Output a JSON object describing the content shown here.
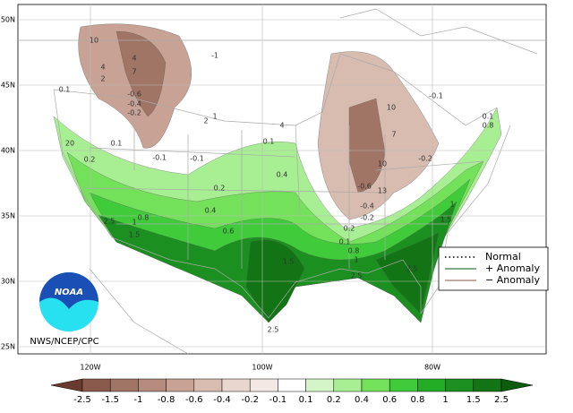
{
  "map": {
    "lat_labels": [
      "50N",
      "45N",
      "40N",
      "35N",
      "30N",
      "25N"
    ],
    "lon_labels": [
      "120W",
      "100W",
      "80W"
    ],
    "credit": "NWS/NCEP/CPC",
    "logo": "NOAA",
    "legend": [
      "Normal",
      "+ Anomaly",
      "− Anomaly"
    ],
    "contour_labels": [
      "10",
      "4",
      "7",
      "4",
      "2",
      "-0.6",
      "-0.4",
      "-0.2",
      "-1",
      "2",
      "0.1",
      "-0.1",
      "20",
      "0.2",
      "0.1",
      "-0.1",
      "0.2",
      "0.4",
      "0.8",
      "1",
      "2.5",
      "1.5",
      "0.6",
      "0.4",
      "0.1",
      "4",
      "1",
      "10",
      "-0.1",
      "7",
      "-0.2",
      "10",
      "-0.6",
      "13",
      "-0.4",
      "-0.2",
      "0.2",
      "0.1",
      "0.8",
      "1",
      "1.5",
      "2.5",
      "2.5",
      "1.5",
      "1",
      "0.8",
      "0.1",
      "2.5"
    ]
  },
  "colorbar": {
    "ticks": [
      -2.5,
      -1.5,
      -1,
      -0.8,
      -0.6,
      -0.4,
      -0.2,
      -0.1,
      0.1,
      0.2,
      0.4,
      0.6,
      0.8,
      1,
      1.5,
      2.5
    ],
    "colors": [
      "#6b3a2e",
      "#8a5a4c",
      "#a07565",
      "#b48b7d",
      "#c8a294",
      "#d8bcb0",
      "#e8d6cf",
      "#f3e8e4",
      "#ffffff",
      "#d4f5c8",
      "#a8ee92",
      "#74e15a",
      "#3fcb3a",
      "#23ad27",
      "#1b8f1f",
      "#137415",
      "#0c5c0e"
    ]
  }
}
